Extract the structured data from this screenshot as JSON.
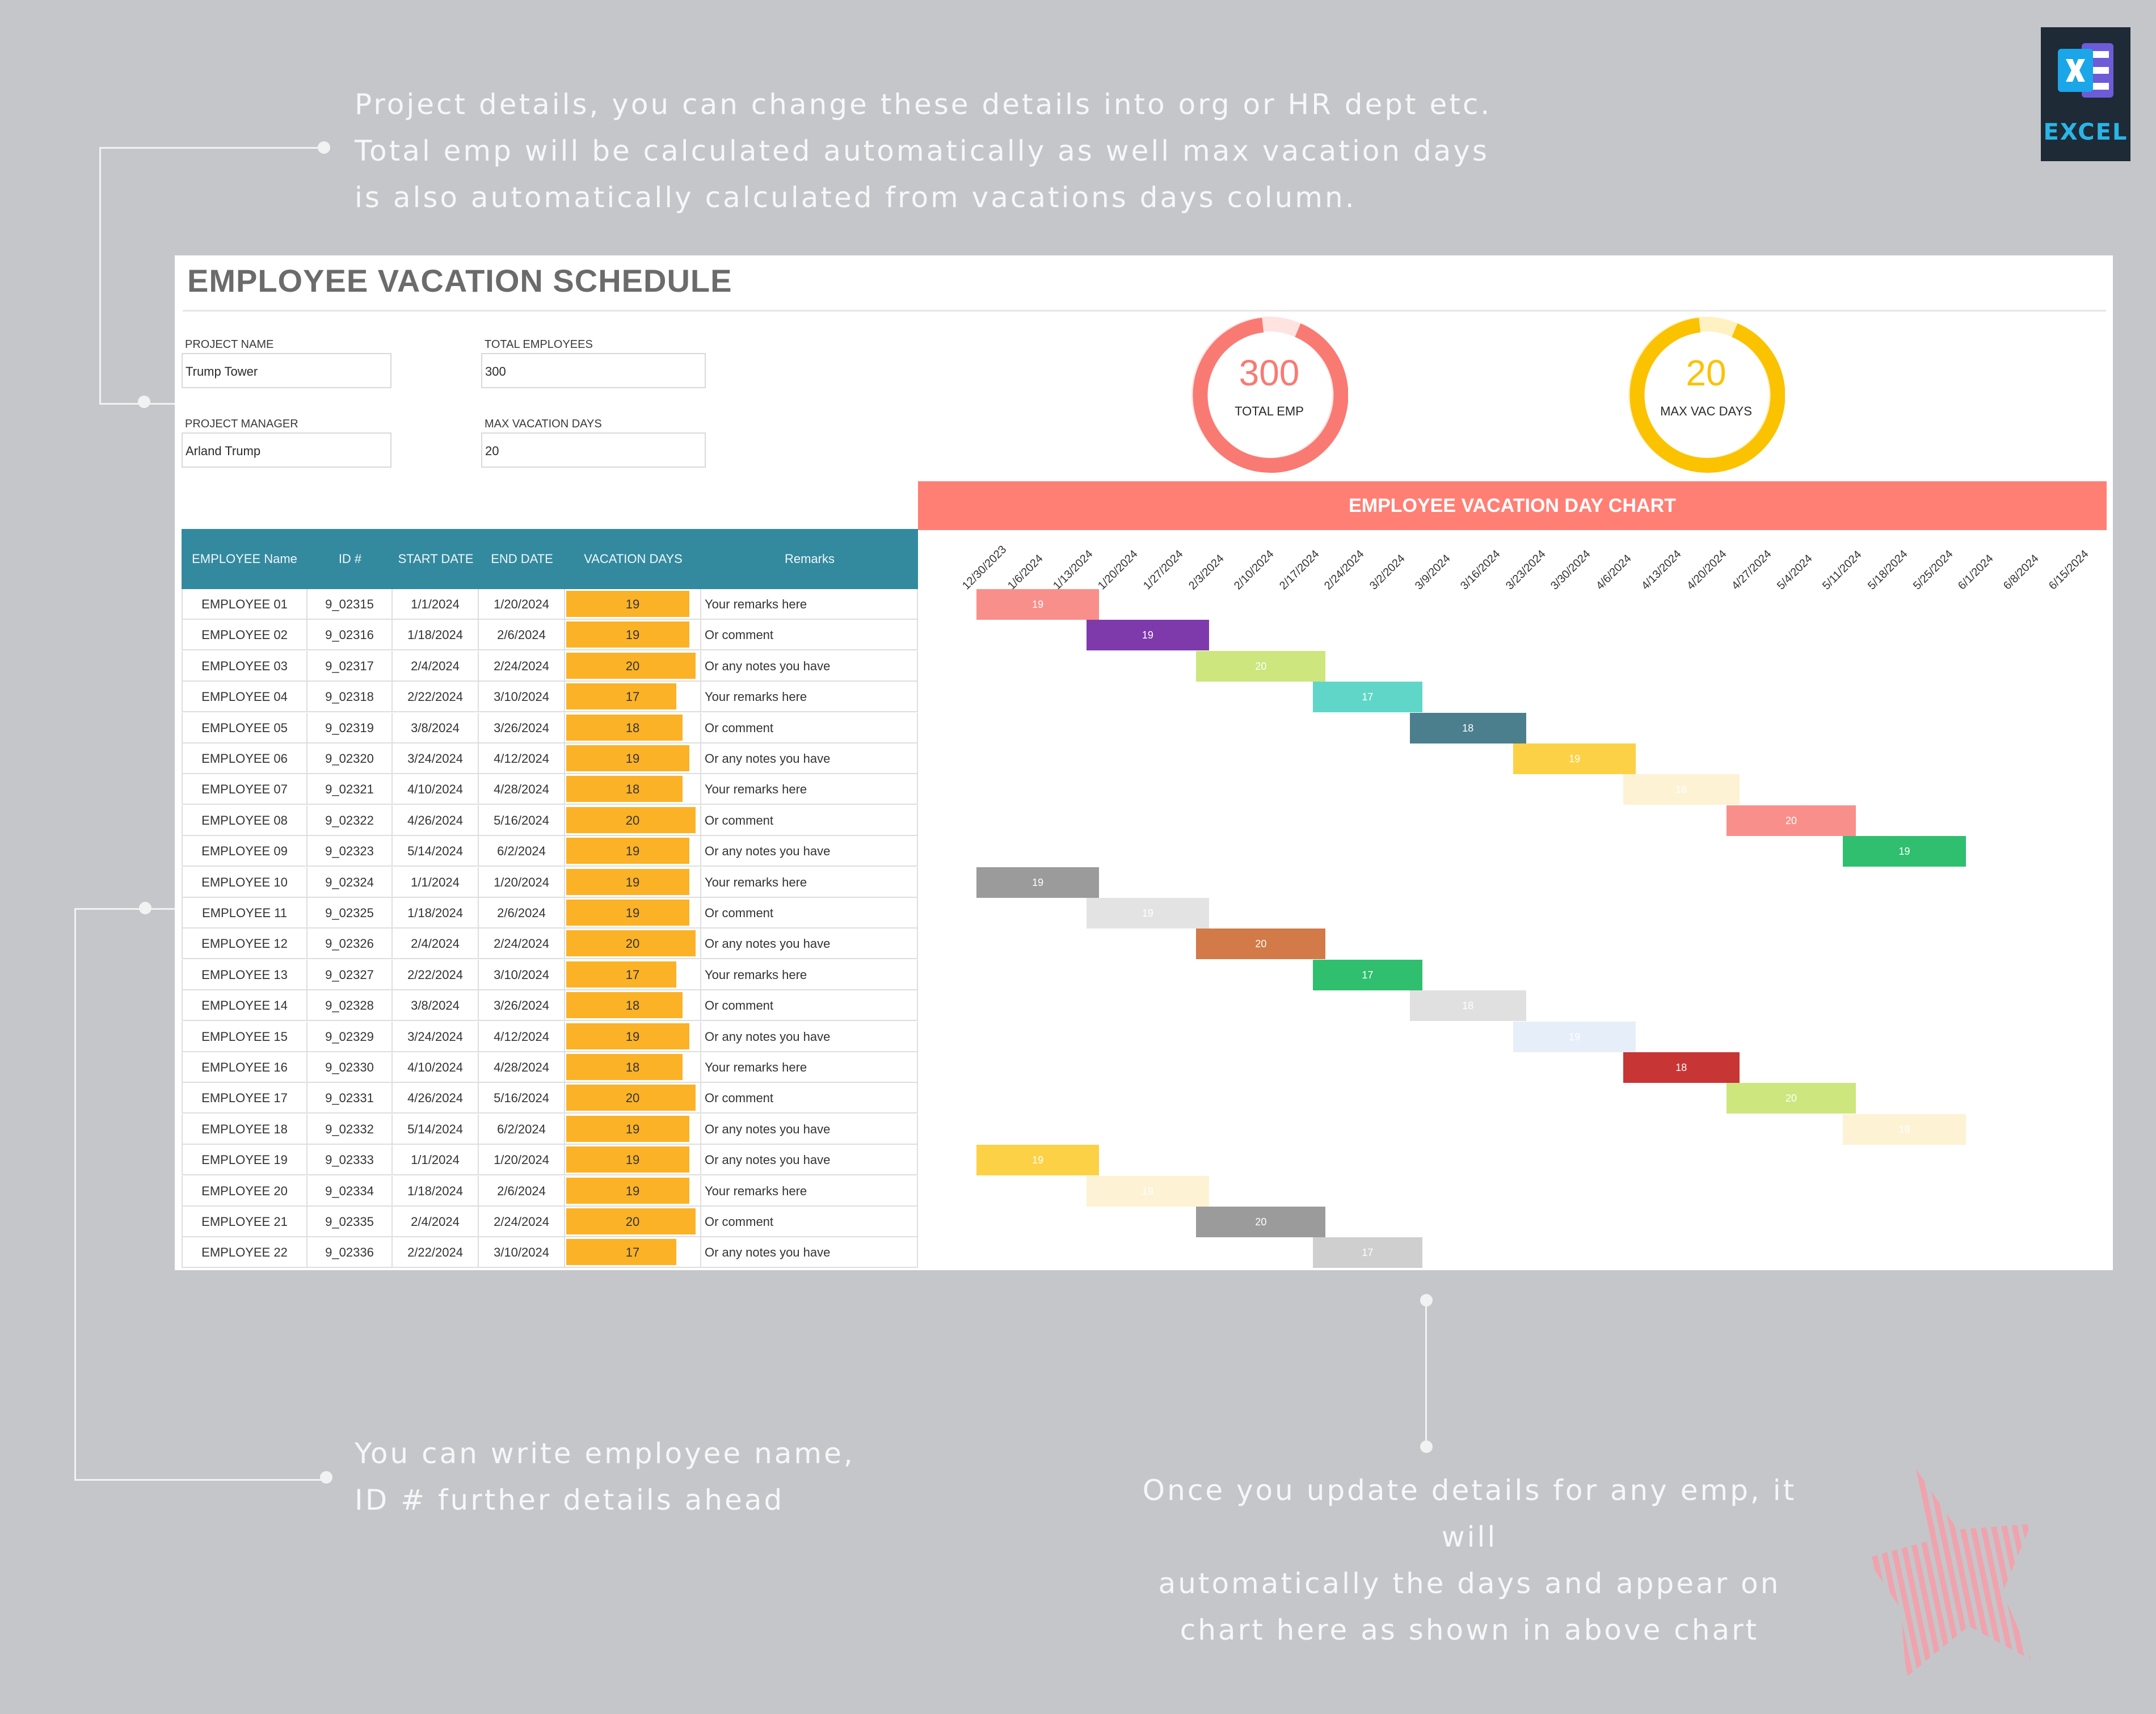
{
  "annotations": {
    "top": "Project details, you can change these details into org or HR dept etc.\nTotal emp will be calculated automatically as well max vacation days\nis also automatically calculated from vacations days column.",
    "bottom_left": "You can write employee name,\nID # further details ahead",
    "bottom_right": "Once you update details for any emp, it will\nautomatically the days and appear on\nchart here as shown in above chart"
  },
  "badge": {
    "label": "EXCEL",
    "icon": "excel-icon"
  },
  "sheet": {
    "title": "EMPLOYEE VACATION SCHEDULE",
    "fields": {
      "project_name": {
        "label": "PROJECT NAME",
        "value": "Trump Tower"
      },
      "project_manager": {
        "label": "PROJECT MANAGER",
        "value": "Arland Trump"
      },
      "total_employees": {
        "label": "TOTAL EMPLOYEES",
        "value": "300"
      },
      "max_vacation_days": {
        "label": "MAX VACATION DAYS",
        "value": "20"
      }
    },
    "kpis": [
      {
        "value": "300",
        "label": "TOTAL EMP",
        "color": "#f97a73"
      },
      {
        "value": "20",
        "label": "MAX VAC DAYS",
        "color": "#fbc200"
      }
    ],
    "chart_title": "EMPLOYEE VACATION DAY CHART",
    "columns": [
      "EMPLOYEE Name",
      "ID #",
      "START DATE",
      "END DATE",
      "VACATION DAYS",
      "Remarks"
    ],
    "rows": [
      [
        "EMPLOYEE 01",
        "9_02315",
        "1/1/2024",
        "1/20/2024",
        "19",
        "Your remarks here"
      ],
      [
        "EMPLOYEE 02",
        "9_02316",
        "1/18/2024",
        "2/6/2024",
        "19",
        "Or comment"
      ],
      [
        "EMPLOYEE 03",
        "9_02317",
        "2/4/2024",
        "2/24/2024",
        "20",
        "Or any notes you have"
      ],
      [
        "EMPLOYEE 04",
        "9_02318",
        "2/22/2024",
        "3/10/2024",
        "17",
        "Your remarks here"
      ],
      [
        "EMPLOYEE 05",
        "9_02319",
        "3/8/2024",
        "3/26/2024",
        "18",
        "Or comment"
      ],
      [
        "EMPLOYEE 06",
        "9_02320",
        "3/24/2024",
        "4/12/2024",
        "19",
        "Or any notes you have"
      ],
      [
        "EMPLOYEE 07",
        "9_02321",
        "4/10/2024",
        "4/28/2024",
        "18",
        "Your remarks here"
      ],
      [
        "EMPLOYEE 08",
        "9_02322",
        "4/26/2024",
        "5/16/2024",
        "20",
        "Or comment"
      ],
      [
        "EMPLOYEE 09",
        "9_02323",
        "5/14/2024",
        "6/2/2024",
        "19",
        "Or any notes you have"
      ],
      [
        "EMPLOYEE 10",
        "9_02324",
        "1/1/2024",
        "1/20/2024",
        "19",
        "Your remarks here"
      ],
      [
        "EMPLOYEE 11",
        "9_02325",
        "1/18/2024",
        "2/6/2024",
        "19",
        "Or comment"
      ],
      [
        "EMPLOYEE 12",
        "9_02326",
        "2/4/2024",
        "2/24/2024",
        "20",
        "Or any notes you have"
      ],
      [
        "EMPLOYEE 13",
        "9_02327",
        "2/22/2024",
        "3/10/2024",
        "17",
        "Your remarks here"
      ],
      [
        "EMPLOYEE 14",
        "9_02328",
        "3/8/2024",
        "3/26/2024",
        "18",
        "Or comment"
      ],
      [
        "EMPLOYEE 15",
        "9_02329",
        "3/24/2024",
        "4/12/2024",
        "19",
        "Or any notes you have"
      ],
      [
        "EMPLOYEE 16",
        "9_02330",
        "4/10/2024",
        "4/28/2024",
        "18",
        "Your remarks here"
      ],
      [
        "EMPLOYEE 17",
        "9_02331",
        "4/26/2024",
        "5/16/2024",
        "20",
        "Or comment"
      ],
      [
        "EMPLOYEE 18",
        "9_02332",
        "5/14/2024",
        "6/2/2024",
        "19",
        "Or any notes you have"
      ],
      [
        "EMPLOYEE 19",
        "9_02333",
        "1/1/2024",
        "1/20/2024",
        "19",
        "Or any notes you have"
      ],
      [
        "EMPLOYEE 20",
        "9_02334",
        "1/18/2024",
        "2/6/2024",
        "19",
        "Your remarks here"
      ],
      [
        "EMPLOYEE 21",
        "9_02335",
        "2/4/2024",
        "2/24/2024",
        "20",
        "Or comment"
      ],
      [
        "EMPLOYEE 22",
        "9_02336",
        "2/22/2024",
        "3/10/2024",
        "17",
        "Or any notes you have"
      ]
    ]
  },
  "chart_data": {
    "type": "bar",
    "orientation": "gantt",
    "title": "EMPLOYEE VACATION DAY CHART",
    "x_ticks": [
      "12/30/2023",
      "1/6/2024",
      "1/13/2024",
      "1/20/2024",
      "1/27/2024",
      "2/3/2024",
      "2/10/2024",
      "2/17/2024",
      "2/24/2024",
      "3/2/2024",
      "3/9/2024",
      "3/16/2024",
      "3/23/2024",
      "3/30/2024",
      "4/6/2024",
      "4/13/2024",
      "4/20/2024",
      "4/27/2024",
      "5/4/2024",
      "5/11/2024",
      "5/18/2024",
      "5/25/2024",
      "6/1/2024",
      "6/8/2024",
      "6/15/2024"
    ],
    "xlim": [
      "12/30/2023",
      "6/15/2024"
    ],
    "bars": [
      {
        "start": "1/1/2024",
        "end": "1/20/2024",
        "days": 19,
        "color": "#f98f8a"
      },
      {
        "start": "1/18/2024",
        "end": "2/6/2024",
        "days": 19,
        "color": "#7e3aab"
      },
      {
        "start": "2/4/2024",
        "end": "2/24/2024",
        "days": 20,
        "color": "#cde67d"
      },
      {
        "start": "2/22/2024",
        "end": "3/10/2024",
        "days": 17,
        "color": "#5fd6c8"
      },
      {
        "start": "3/8/2024",
        "end": "3/26/2024",
        "days": 18,
        "color": "#4b7f8e"
      },
      {
        "start": "3/24/2024",
        "end": "4/12/2024",
        "days": 19,
        "color": "#fcd145"
      },
      {
        "start": "4/10/2024",
        "end": "4/28/2024",
        "days": 18,
        "color": "#fdf2d4"
      },
      {
        "start": "4/26/2024",
        "end": "5/16/2024",
        "days": 20,
        "color": "#f98f8a"
      },
      {
        "start": "5/14/2024",
        "end": "6/2/2024",
        "days": 19,
        "color": "#2fbf6f"
      },
      {
        "start": "1/1/2024",
        "end": "1/20/2024",
        "days": 19,
        "color": "#9b9b9b"
      },
      {
        "start": "1/18/2024",
        "end": "2/6/2024",
        "days": 19,
        "color": "#e3e3e3"
      },
      {
        "start": "2/4/2024",
        "end": "2/24/2024",
        "days": 20,
        "color": "#d27a48"
      },
      {
        "start": "2/22/2024",
        "end": "3/10/2024",
        "days": 17,
        "color": "#2fbf6f"
      },
      {
        "start": "3/8/2024",
        "end": "3/26/2024",
        "days": 18,
        "color": "#e0e0e0"
      },
      {
        "start": "3/24/2024",
        "end": "4/12/2024",
        "days": 19,
        "color": "#e6eef9"
      },
      {
        "start": "4/10/2024",
        "end": "4/28/2024",
        "days": 18,
        "color": "#c83535"
      },
      {
        "start": "4/26/2024",
        "end": "5/16/2024",
        "days": 20,
        "color": "#cde67d"
      },
      {
        "start": "5/14/2024",
        "end": "6/2/2024",
        "days": 19,
        "color": "#fdf2d4"
      },
      {
        "start": "1/1/2024",
        "end": "1/20/2024",
        "days": 19,
        "color": "#fcd145"
      },
      {
        "start": "1/18/2024",
        "end": "2/6/2024",
        "days": 19,
        "color": "#fdf2d4"
      },
      {
        "start": "2/4/2024",
        "end": "2/24/2024",
        "days": 20,
        "color": "#9b9b9b"
      },
      {
        "start": "2/22/2024",
        "end": "3/10/2024",
        "days": 17,
        "color": "#cfcfcf"
      }
    ]
  },
  "colors": {
    "background": "#c5c6ca",
    "header": "#338a9f",
    "accent": "#ff7f75",
    "vacation_bar": "#fbb226"
  }
}
